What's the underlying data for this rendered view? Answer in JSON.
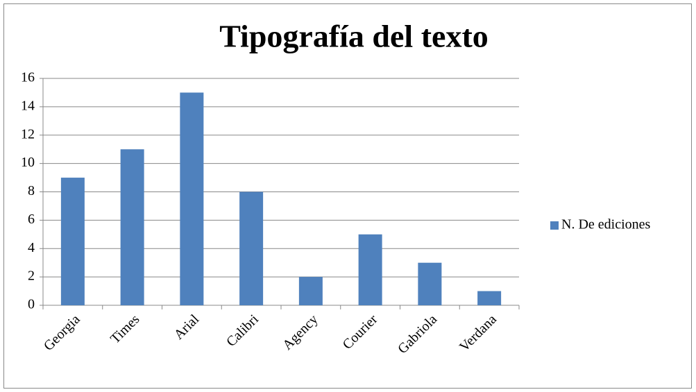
{
  "chart_data": {
    "type": "bar",
    "title": "Tipografía del texto",
    "categories": [
      "Georgia",
      "Times",
      "Arial",
      "Calibri",
      "Agency",
      "Courier",
      "Gabriola",
      "Verdana"
    ],
    "series": [
      {
        "name": "N. De ediciones",
        "color": "#4f81bd",
        "values": [
          9,
          11,
          15,
          8,
          2,
          5,
          3,
          1
        ]
      }
    ],
    "ylim": [
      0,
      16
    ],
    "yticks": [
      0,
      2,
      4,
      6,
      8,
      10,
      12,
      14,
      16
    ],
    "grid": true,
    "legend": "right"
  }
}
